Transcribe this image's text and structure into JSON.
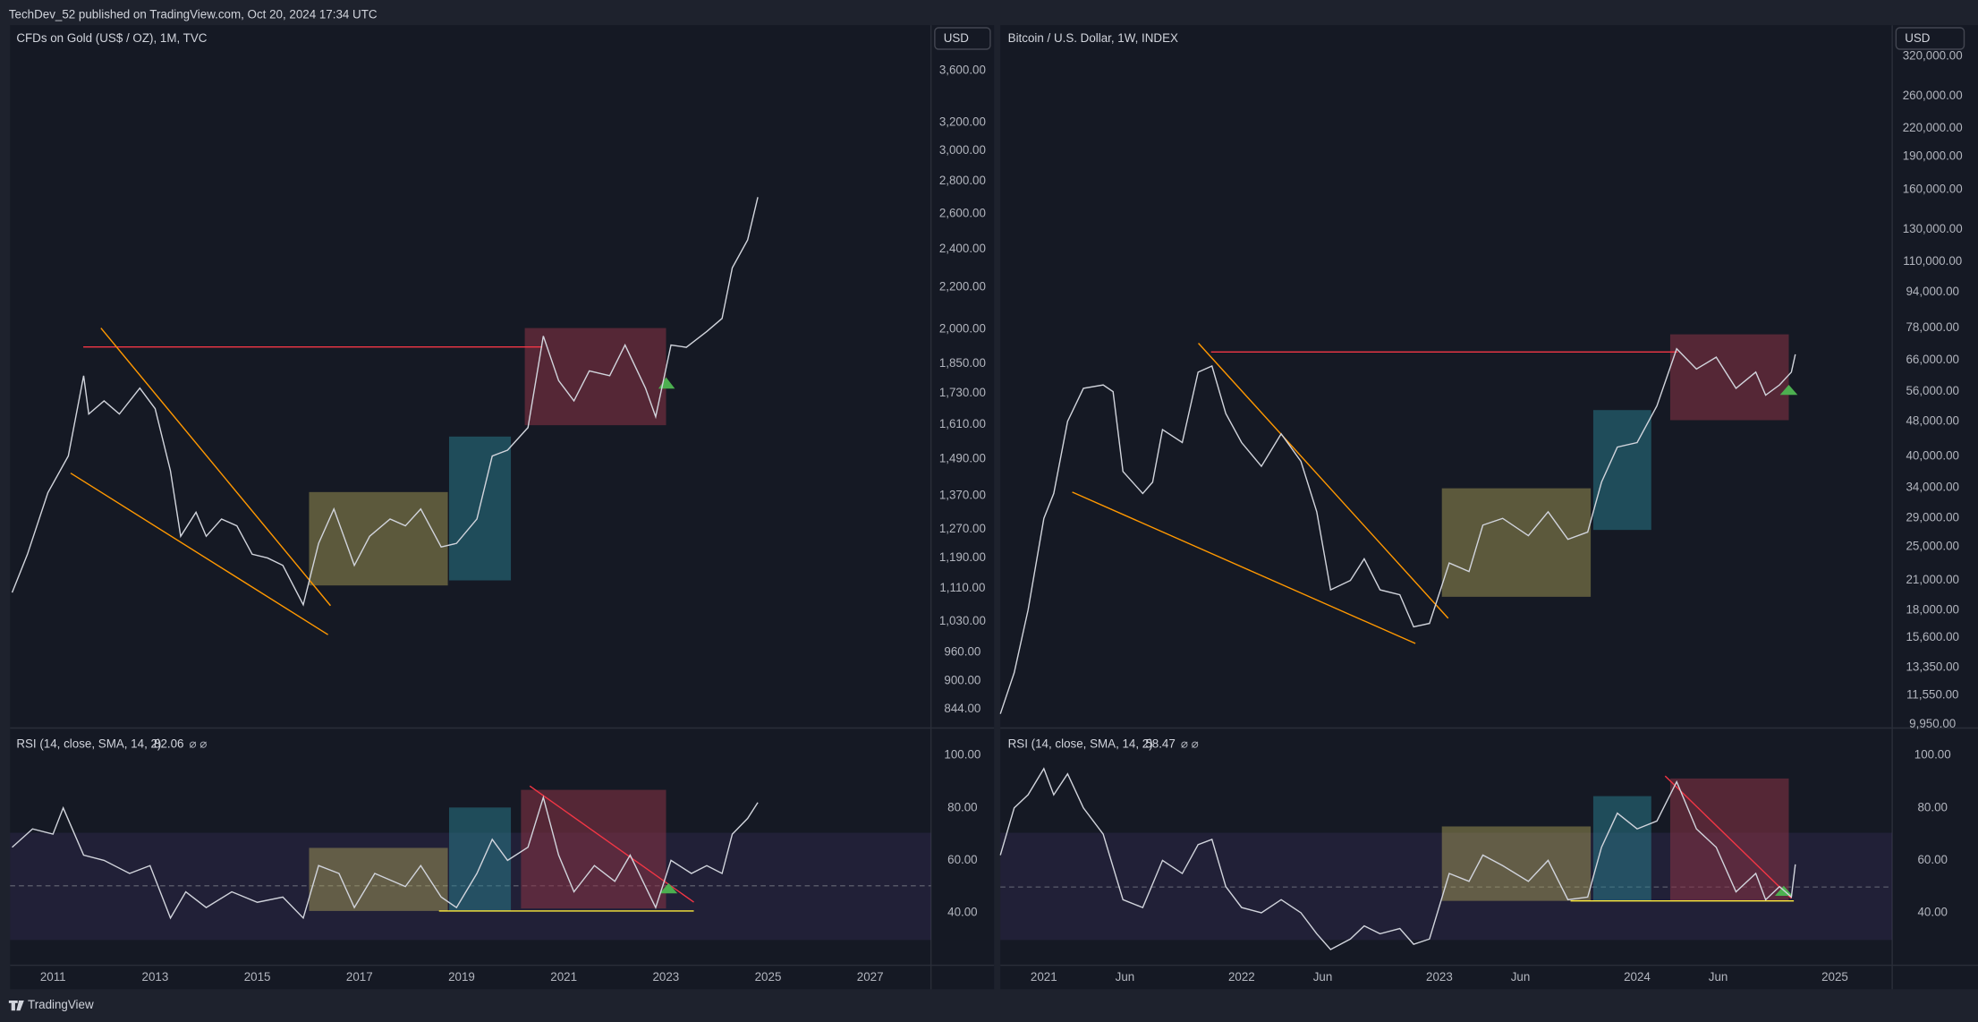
{
  "header": {
    "text": "TechDev_52 published on TradingView.com, Oct 20, 2024 17:34 UTC"
  },
  "footer": {
    "brand": "TradingView"
  },
  "chart_data": [
    {
      "type": "line",
      "title": "CFDs on Gold (US$ / OZ), 1M, TVC",
      "currency": "USD",
      "log_scale": true,
      "color": "#d1d4dc",
      "x": [
        2010.2,
        2010.5,
        2010.9,
        2011.3,
        2011.6,
        2011.7,
        2012.0,
        2012.3,
        2012.7,
        2013.0,
        2013.3,
        2013.5,
        2013.8,
        2014.0,
        2014.3,
        2014.6,
        2014.9,
        2015.2,
        2015.5,
        2015.9,
        2016.2,
        2016.5,
        2016.9,
        2017.2,
        2017.6,
        2017.9,
        2018.2,
        2018.6,
        2018.9,
        2019.3,
        2019.6,
        2019.9,
        2020.3,
        2020.6,
        2020.9,
        2021.2,
        2021.5,
        2021.9,
        2022.2,
        2022.6,
        2022.8,
        2023.1,
        2023.4,
        2023.8,
        2024.1,
        2024.3,
        2024.6,
        2024.8
      ],
      "values": [
        1100,
        1200,
        1380,
        1500,
        1800,
        1650,
        1700,
        1650,
        1750,
        1670,
        1450,
        1250,
        1320,
        1250,
        1300,
        1280,
        1200,
        1190,
        1170,
        1070,
        1230,
        1330,
        1170,
        1250,
        1300,
        1280,
        1330,
        1220,
        1230,
        1300,
        1500,
        1520,
        1600,
        1970,
        1780,
        1700,
        1820,
        1800,
        1930,
        1750,
        1640,
        1930,
        1920,
        1990,
        2050,
        2300,
        2450,
        2700
      ],
      "xlim": [
        2010.16,
        2028.19
      ],
      "ylim": [
        811,
        3990
      ],
      "yticks": [
        {
          "value": 844,
          "label": "844.00"
        },
        {
          "value": 900,
          "label": "900.00"
        },
        {
          "value": 960,
          "label": "960.00"
        },
        {
          "value": 1030,
          "label": "1,030.00"
        },
        {
          "value": 1110,
          "label": "1,110.00"
        },
        {
          "value": 1190,
          "label": "1,190.00"
        },
        {
          "value": 1270,
          "label": "1,270.00"
        },
        {
          "value": 1370,
          "label": "1,370.00"
        },
        {
          "value": 1490,
          "label": "1,490.00"
        },
        {
          "value": 1610,
          "label": "1,610.00"
        },
        {
          "value": 1730,
          "label": "1,730.00"
        },
        {
          "value": 1850,
          "label": "1,850.00"
        },
        {
          "value": 2000,
          "label": "2,000.00"
        },
        {
          "value": 2200,
          "label": "2,200.00"
        },
        {
          "value": 2400,
          "label": "2,400.00"
        },
        {
          "value": 2600,
          "label": "2,600.00"
        },
        {
          "value": 2800,
          "label": "2,800.00"
        },
        {
          "value": 3000,
          "label": "3,000.00"
        },
        {
          "value": 3200,
          "label": "3,200.00"
        },
        {
          "value": 3600,
          "label": "3,600.00"
        }
      ]
    },
    {
      "type": "line",
      "title": "RSI (14, close, SMA, 14, 2)",
      "last_value": 82.06,
      "color": "#d1d4dc",
      "x": [
        2010.2,
        2010.6,
        2011.0,
        2011.2,
        2011.6,
        2012.0,
        2012.5,
        2012.9,
        2013.3,
        2013.6,
        2014.0,
        2014.5,
        2015.0,
        2015.5,
        2015.9,
        2016.2,
        2016.6,
        2016.9,
        2017.3,
        2017.9,
        2018.2,
        2018.6,
        2018.9,
        2019.3,
        2019.6,
        2019.9,
        2020.3,
        2020.6,
        2020.9,
        2021.2,
        2021.6,
        2022.0,
        2022.3,
        2022.7,
        2022.8,
        2023.1,
        2023.5,
        2023.8,
        2024.1,
        2024.3,
        2024.6,
        2024.8
      ],
      "values": [
        65,
        72,
        70,
        80,
        62,
        60,
        55,
        58,
        38,
        48,
        42,
        48,
        44,
        46,
        38,
        58,
        55,
        42,
        55,
        50,
        58,
        46,
        42,
        55,
        68,
        60,
        65,
        84,
        62,
        48,
        58,
        52,
        62,
        46,
        42,
        60,
        55,
        58,
        55,
        70,
        76,
        82.06
      ],
      "xlim": [
        2010.16,
        2028.19
      ],
      "ylim": [
        20,
        110
      ],
      "yticks": [
        {
          "value": 40,
          "label": "40.00"
        },
        {
          "value": 60,
          "label": "60.00"
        },
        {
          "value": 80,
          "label": "80.00"
        },
        {
          "value": 100,
          "label": "100.00"
        }
      ],
      "xticks": [
        2011,
        2013,
        2015,
        2017,
        2019,
        2021,
        2023,
        2025,
        2027
      ]
    },
    {
      "type": "line",
      "title": "Bitcoin / U.S. Dollar, 1W, INDEX",
      "currency": "USD",
      "log_scale": true,
      "color": "#d1d4dc",
      "x": [
        2020.78,
        2020.85,
        2020.92,
        2021.0,
        2021.05,
        2021.12,
        2021.2,
        2021.3,
        2021.35,
        2021.4,
        2021.5,
        2021.55,
        2021.6,
        2021.7,
        2021.78,
        2021.85,
        2021.92,
        2022.0,
        2022.1,
        2022.2,
        2022.3,
        2022.38,
        2022.45,
        2022.55,
        2022.62,
        2022.7,
        2022.8,
        2022.87,
        2022.95,
        2023.05,
        2023.15,
        2023.22,
        2023.32,
        2023.45,
        2023.55,
        2023.65,
        2023.75,
        2023.82,
        2023.9,
        2024.0,
        2024.1,
        2024.2,
        2024.3,
        2024.4,
        2024.5,
        2024.6,
        2024.65,
        2024.72,
        2024.78,
        2024.8
      ],
      "values": [
        10500,
        13000,
        18000,
        29000,
        33000,
        48000,
        57000,
        58000,
        56000,
        37000,
        33000,
        35000,
        46000,
        43000,
        62000,
        64000,
        50000,
        43000,
        38000,
        45000,
        39000,
        30000,
        20000,
        21000,
        23500,
        20000,
        19500,
        16500,
        16800,
        23000,
        22000,
        28000,
        29000,
        26500,
        30000,
        26000,
        27000,
        35000,
        42000,
        43000,
        52000,
        70000,
        63000,
        67000,
        57000,
        62000,
        55000,
        58000,
        62000,
        68000
      ],
      "xlim": [
        2020.78,
        2025.29
      ],
      "ylim": [
        9820,
        376000
      ],
      "yticks": [
        {
          "value": 9950,
          "label": "9,950.00"
        },
        {
          "value": 11550,
          "label": "11,550.00"
        },
        {
          "value": 13350,
          "label": "13,350.00"
        },
        {
          "value": 15600,
          "label": "15,600.00"
        },
        {
          "value": 18000,
          "label": "18,000.00"
        },
        {
          "value": 21000,
          "label": "21,000.00"
        },
        {
          "value": 25000,
          "label": "25,000.00"
        },
        {
          "value": 29000,
          "label": "29,000.00"
        },
        {
          "value": 34000,
          "label": "34,000.00"
        },
        {
          "value": 40000,
          "label": "40,000.00"
        },
        {
          "value": 48000,
          "label": "48,000.00"
        },
        {
          "value": 56000,
          "label": "56,000.00"
        },
        {
          "value": 66000,
          "label": "66,000.00"
        },
        {
          "value": 78000,
          "label": "78,000.00"
        },
        {
          "value": 94000,
          "label": "94,000.00"
        },
        {
          "value": 110000,
          "label": "110,000.00"
        },
        {
          "value": 130000,
          "label": "130,000.00"
        },
        {
          "value": 160000,
          "label": "160,000.00"
        },
        {
          "value": 190000,
          "label": "190,000.00"
        },
        {
          "value": 220000,
          "label": "220,000.00"
        },
        {
          "value": 260000,
          "label": "260,000.00"
        },
        {
          "value": 320000,
          "label": "320,000.00"
        }
      ]
    },
    {
      "type": "line",
      "title": "RSI (14, close, SMA, 14, 2)",
      "last_value": 58.47,
      "color": "#d1d4dc",
      "x": [
        2020.78,
        2020.85,
        2020.92,
        2021.0,
        2021.05,
        2021.12,
        2021.2,
        2021.3,
        2021.4,
        2021.5,
        2021.6,
        2021.7,
        2021.78,
        2021.85,
        2021.92,
        2022.0,
        2022.1,
        2022.2,
        2022.3,
        2022.38,
        2022.45,
        2022.55,
        2022.62,
        2022.7,
        2022.8,
        2022.87,
        2022.95,
        2023.05,
        2023.15,
        2023.22,
        2023.32,
        2023.45,
        2023.55,
        2023.65,
        2023.75,
        2023.82,
        2023.9,
        2024.0,
        2024.1,
        2024.2,
        2024.3,
        2024.4,
        2024.5,
        2024.6,
        2024.65,
        2024.72,
        2024.78,
        2024.8
      ],
      "values": [
        62,
        80,
        85,
        95,
        85,
        93,
        80,
        70,
        45,
        42,
        60,
        55,
        66,
        68,
        50,
        42,
        40,
        45,
        40,
        32,
        26,
        30,
        35,
        32,
        34,
        28,
        30,
        55,
        52,
        62,
        58,
        52,
        60,
        45,
        46,
        65,
        78,
        72,
        75,
        90,
        72,
        65,
        48,
        55,
        45,
        50,
        46,
        58.47
      ],
      "xlim": [
        2020.78,
        2025.29
      ],
      "ylim": [
        20,
        110
      ],
      "yticks": [
        {
          "value": 40,
          "label": "40.00"
        },
        {
          "value": 60,
          "label": "60.00"
        },
        {
          "value": 80,
          "label": "80.00"
        },
        {
          "value": 100,
          "label": "100.00"
        }
      ],
      "xticks": [
        2021,
        {
          "value": 2021.41,
          "label": "Jun"
        },
        2022,
        {
          "value": 2022.41,
          "label": "Jun"
        },
        2023,
        {
          "value": 2023.41,
          "label": "Jun"
        },
        2024,
        {
          "value": 2024.41,
          "label": "Jun"
        },
        2025
      ]
    }
  ]
}
